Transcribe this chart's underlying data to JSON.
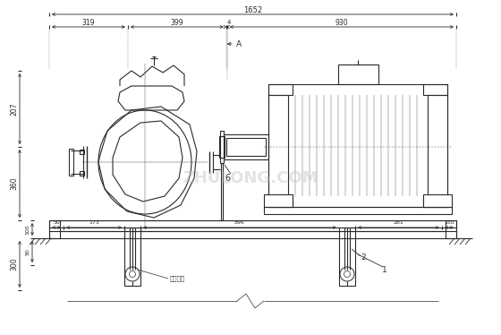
{
  "bg_color": "#ffffff",
  "lc": "#2a2a2a",
  "fig_width": 5.6,
  "fig_height": 3.74,
  "dpi": 100,
  "labels": {
    "dim_1652": "1652",
    "dim_319": "319",
    "dim_399": "399",
    "dim_4": "4",
    "dim_930": "930",
    "dim_207": "207",
    "dim_360": "360",
    "dim_100": "100",
    "dim_50_label": "50",
    "dim_300": "300",
    "dim_50": "50",
    "dim_173": "173",
    "dim_896": "896",
    "dim_281": "281",
    "dim_150": "150",
    "label_A": "A",
    "label_1": "1",
    "label_2": "2",
    "label_6": "6",
    "note": "二次灌浆"
  }
}
